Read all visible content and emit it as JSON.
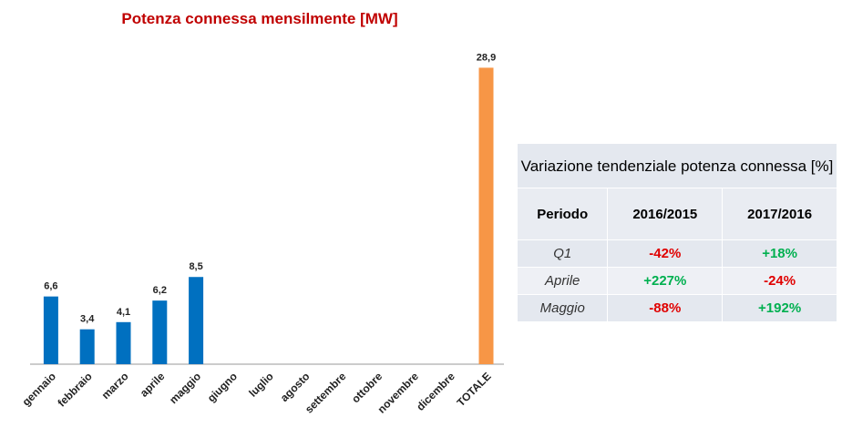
{
  "chart_data": {
    "type": "bar",
    "title": "Potenza connessa mensilmente [MW]",
    "categories": [
      "gennaio",
      "febbraio",
      "marzo",
      "aprile",
      "maggio",
      "giugno",
      "luglio",
      "agosto",
      "settembre",
      "ottobre",
      "novembre",
      "dicembre",
      "TOTALE"
    ],
    "values": [
      6.6,
      3.4,
      4.1,
      6.2,
      8.5,
      null,
      null,
      null,
      null,
      null,
      null,
      null,
      28.9
    ],
    "value_labels": [
      "6,6",
      "3,4",
      "4,1",
      "6,2",
      "8,5",
      null,
      null,
      null,
      null,
      null,
      null,
      null,
      "28,9"
    ],
    "colors": [
      "#0070c0",
      "#0070c0",
      "#0070c0",
      "#0070c0",
      "#0070c0",
      "#0070c0",
      "#0070c0",
      "#0070c0",
      "#0070c0",
      "#0070c0",
      "#0070c0",
      "#0070c0",
      "#f79646"
    ],
    "ylim": [
      0,
      30
    ]
  },
  "table": {
    "title": "Variazione tendenziale potenza connessa [%]",
    "header": [
      "Periodo",
      "2016/2015",
      "2017/2016"
    ],
    "rows": [
      [
        "Q1",
        "-42%",
        "+18%"
      ],
      [
        "Aprile",
        "+227%",
        "-24%"
      ],
      [
        "Maggio",
        "-88%",
        "+192%"
      ]
    ]
  }
}
